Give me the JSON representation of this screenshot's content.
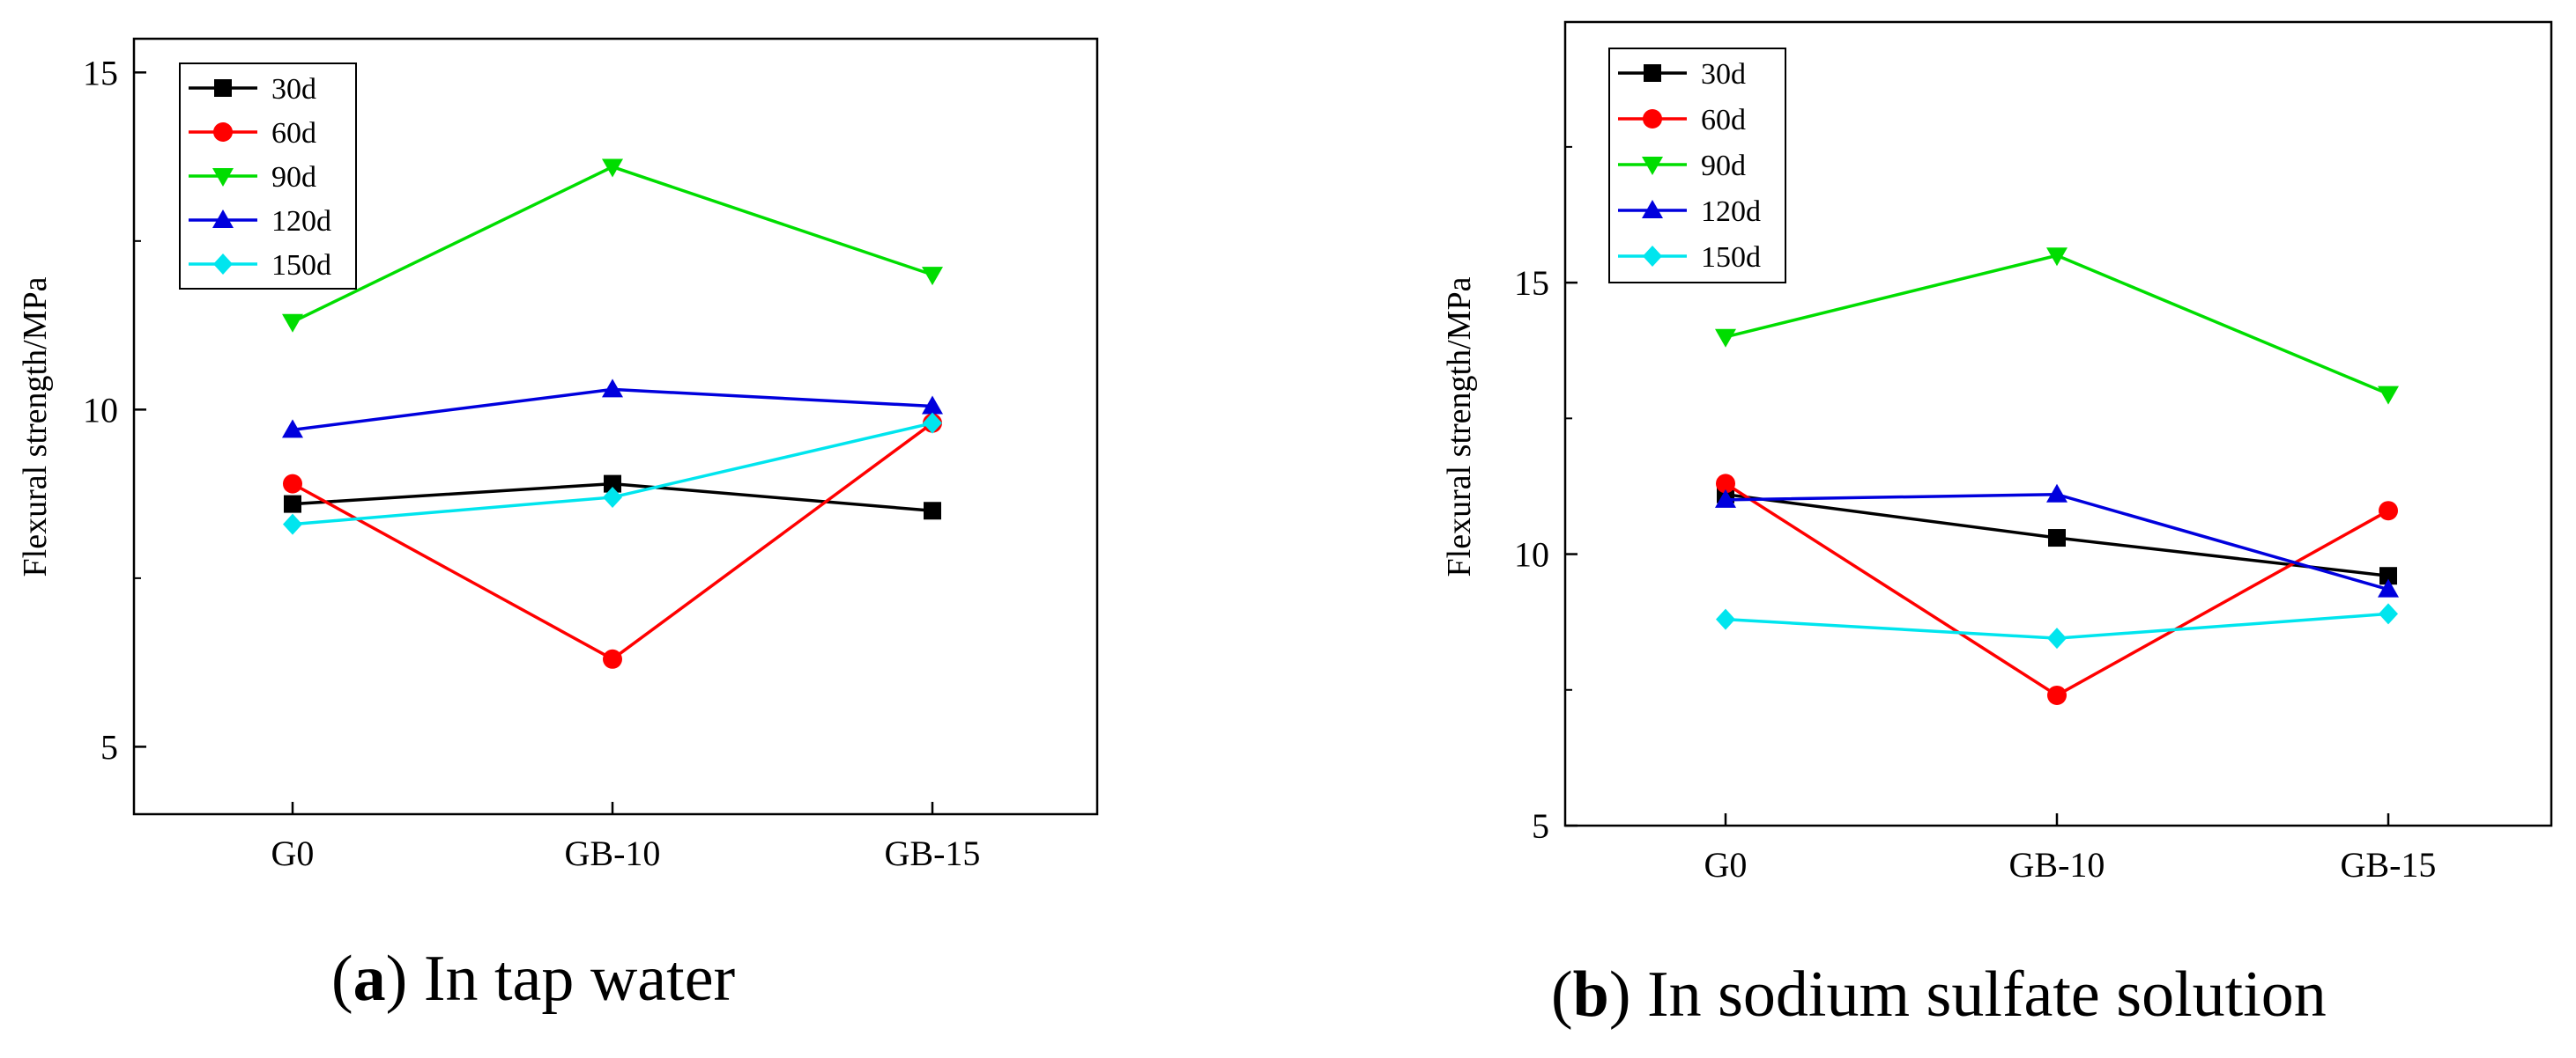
{
  "chart_data": [
    {
      "type": "line",
      "caption_letter": "a",
      "caption_text": "In tap water",
      "ylabel": "Flexural strength/MPa",
      "xlabel": "",
      "categories": [
        "G0",
        "GB-10",
        "GB-15"
      ],
      "ylim": [
        4,
        15.5
      ],
      "yticks": [
        5,
        10,
        15
      ],
      "legend_position": "top-left",
      "series": [
        {
          "name": "30d",
          "color": "#000000",
          "marker": "square",
          "values": [
            8.6,
            8.9,
            8.5
          ]
        },
        {
          "name": "60d",
          "color": "#ff0000",
          "marker": "circle",
          "values": [
            8.9,
            6.3,
            9.8
          ]
        },
        {
          "name": "90d",
          "color": "#00dd00",
          "marker": "triangle-down",
          "values": [
            11.3,
            13.6,
            12.0
          ]
        },
        {
          "name": "120d",
          "color": "#0000dd",
          "marker": "triangle-up",
          "values": [
            9.7,
            10.3,
            10.05
          ]
        },
        {
          "name": "150d",
          "color": "#00e5ee",
          "marker": "diamond",
          "values": [
            8.3,
            8.7,
            9.8
          ]
        }
      ]
    },
    {
      "type": "line",
      "caption_letter": "b",
      "caption_text": "In sodium sulfate solution",
      "ylabel": "Flexural strength/MPa",
      "xlabel": "",
      "categories": [
        "G0",
        "GB-10",
        "GB-15"
      ],
      "ylim": [
        5,
        19.8
      ],
      "yticks": [
        5,
        10,
        15
      ],
      "legend_position": "top-left",
      "series": [
        {
          "name": "30d",
          "color": "#000000",
          "marker": "square",
          "values": [
            11.1,
            10.3,
            9.6
          ]
        },
        {
          "name": "60d",
          "color": "#ff0000",
          "marker": "circle",
          "values": [
            11.3,
            7.4,
            10.8
          ]
        },
        {
          "name": "90d",
          "color": "#00dd00",
          "marker": "triangle-down",
          "values": [
            14.0,
            15.5,
            12.95
          ]
        },
        {
          "name": "120d",
          "color": "#0000dd",
          "marker": "triangle-up",
          "values": [
            11.0,
            11.1,
            9.35
          ]
        },
        {
          "name": "150d",
          "color": "#00e5ee",
          "marker": "diamond",
          "values": [
            8.8,
            8.45,
            8.9
          ]
        }
      ]
    }
  ]
}
